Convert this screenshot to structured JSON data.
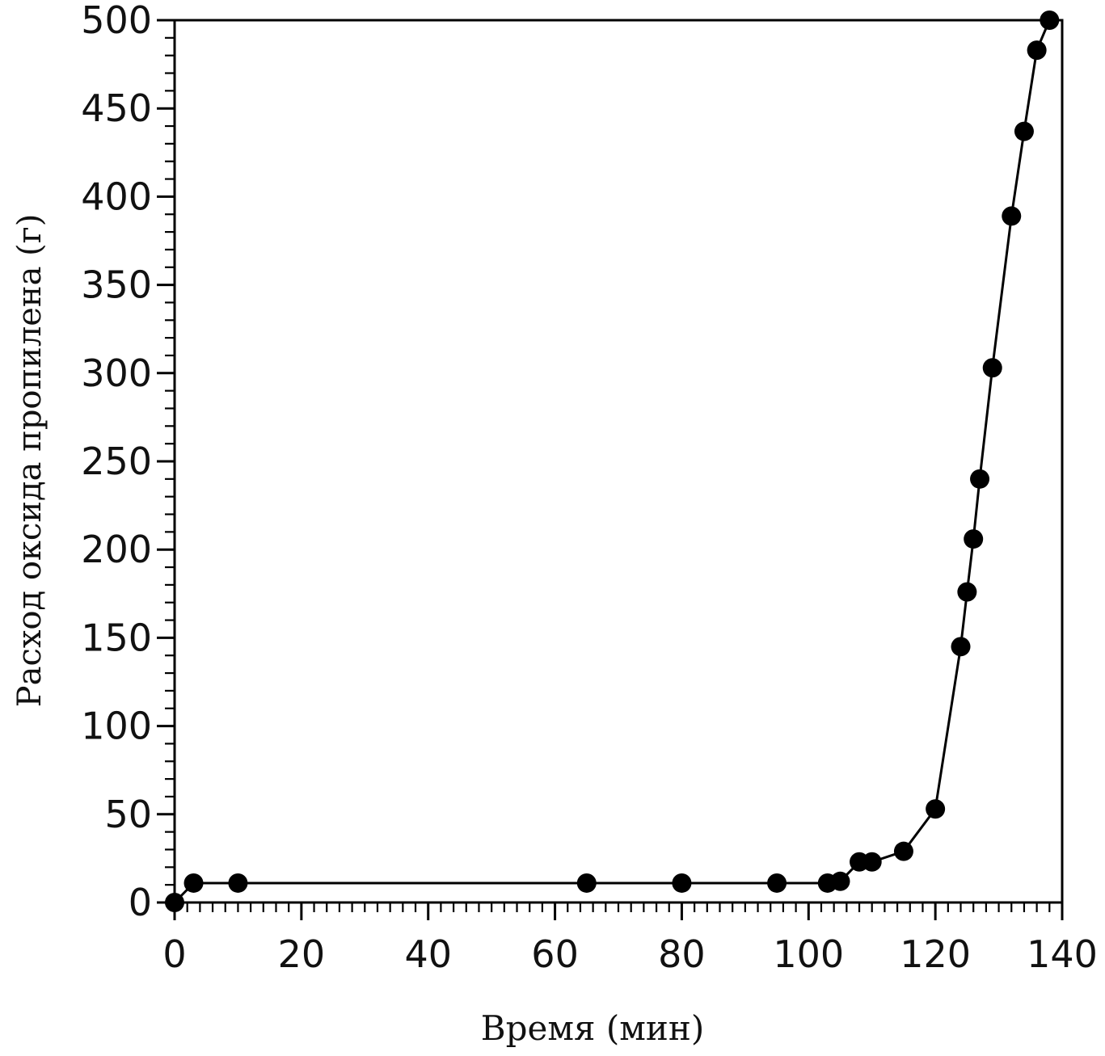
{
  "chart_data": {
    "type": "line",
    "title": "",
    "xlabel": "Время (мин)",
    "ylabel": "Расход оксида пропилена (г)",
    "xlim": [
      0,
      140
    ],
    "ylim": [
      0,
      500
    ],
    "x_ticks": [
      0,
      20,
      40,
      60,
      80,
      100,
      120,
      140
    ],
    "y_ticks": [
      0,
      50,
      100,
      150,
      200,
      250,
      300,
      350,
      400,
      450,
      500
    ],
    "x_tick_labels": [
      "0",
      "20",
      "40",
      "60",
      "80",
      "100",
      "120",
      "140"
    ],
    "y_tick_labels": [
      "0",
      "50",
      "100",
      "150",
      "200",
      "250",
      "300",
      "350",
      "400",
      "450",
      "500"
    ],
    "x_minor_step": 2,
    "y_minor_step": 10,
    "grid": false,
    "series": [
      {
        "color": "#000000",
        "marker": "filled-circle",
        "points": [
          {
            "x": 0,
            "y": 0
          },
          {
            "x": 3,
            "y": 11
          },
          {
            "x": 10,
            "y": 11
          },
          {
            "x": 65,
            "y": 11
          },
          {
            "x": 80,
            "y": 11
          },
          {
            "x": 95,
            "y": 11
          },
          {
            "x": 103,
            "y": 11
          },
          {
            "x": 105,
            "y": 12
          },
          {
            "x": 108,
            "y": 23
          },
          {
            "x": 110,
            "y": 23
          },
          {
            "x": 115,
            "y": 29
          },
          {
            "x": 120,
            "y": 53
          },
          {
            "x": 124,
            "y": 145
          },
          {
            "x": 125,
            "y": 176
          },
          {
            "x": 126,
            "y": 206
          },
          {
            "x": 127,
            "y": 240
          },
          {
            "x": 129,
            "y": 303
          },
          {
            "x": 132,
            "y": 389
          },
          {
            "x": 134,
            "y": 437
          },
          {
            "x": 136,
            "y": 483
          },
          {
            "x": 138,
            "y": 500
          }
        ]
      }
    ]
  }
}
